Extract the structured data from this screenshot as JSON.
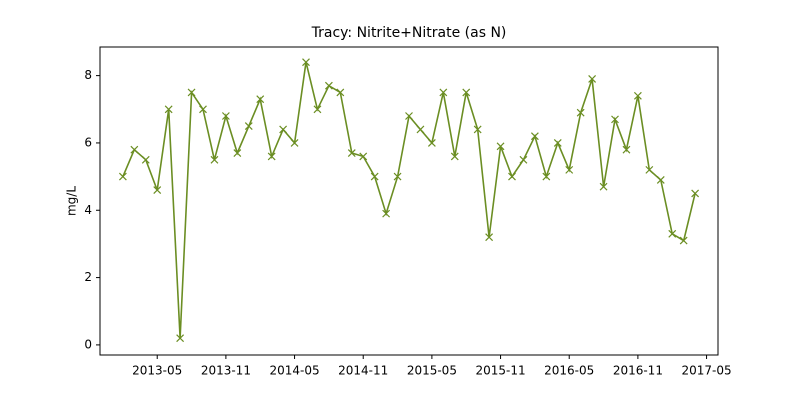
{
  "chart_data": {
    "type": "line",
    "title": "Tracy: Nitrite+Nitrate (as N)",
    "y_label": "mg/L",
    "x": [
      "2013-02",
      "2013-03",
      "2013-04",
      "2013-05",
      "2013-06",
      "2013-07",
      "2013-08",
      "2013-09",
      "2013-10",
      "2013-11",
      "2013-12",
      "2014-01",
      "2014-02",
      "2014-03",
      "2014-04",
      "2014-05",
      "2014-06",
      "2014-07",
      "2014-08",
      "2014-09",
      "2014-10",
      "2014-11",
      "2014-12",
      "2015-01",
      "2015-02",
      "2015-03",
      "2015-04",
      "2015-05",
      "2015-06",
      "2015-07",
      "2015-08",
      "2015-09",
      "2015-10",
      "2015-11",
      "2015-12",
      "2016-01",
      "2016-02",
      "2016-03",
      "2016-04",
      "2016-05",
      "2016-06",
      "2016-07",
      "2016-08",
      "2016-09",
      "2016-10",
      "2016-11",
      "2016-12",
      "2017-01",
      "2017-02",
      "2017-03",
      "2017-04"
    ],
    "series": [
      {
        "name": "Nitrite+Nitrate",
        "color": "#6b8e23",
        "values": [
          5.0,
          5.8,
          5.5,
          4.6,
          7.0,
          0.2,
          7.5,
          7.0,
          5.5,
          6.8,
          5.7,
          6.5,
          7.3,
          5.6,
          6.4,
          6.0,
          8.4,
          7.0,
          7.7,
          7.5,
          5.7,
          5.6,
          5.0,
          3.9,
          5.0,
          6.8,
          6.4,
          6.0,
          7.5,
          5.6,
          7.5,
          6.4,
          3.2,
          5.9,
          5.0,
          5.5,
          6.2,
          5.0,
          6.0,
          5.2,
          6.9,
          7.9,
          4.7,
          6.7,
          5.8,
          7.4,
          5.2,
          4.9,
          3.3,
          3.1,
          4.5
        ]
      }
    ],
    "xlim": [
      "2012-12",
      "2017-06"
    ],
    "xticks": [
      "2013-05",
      "2013-11",
      "2014-05",
      "2014-11",
      "2015-05",
      "2015-11",
      "2016-05",
      "2016-11",
      "2017-05"
    ],
    "ylim": [
      -0.3,
      8.85
    ],
    "yticks": [
      0,
      2,
      4,
      6,
      8
    ],
    "grid": false
  }
}
